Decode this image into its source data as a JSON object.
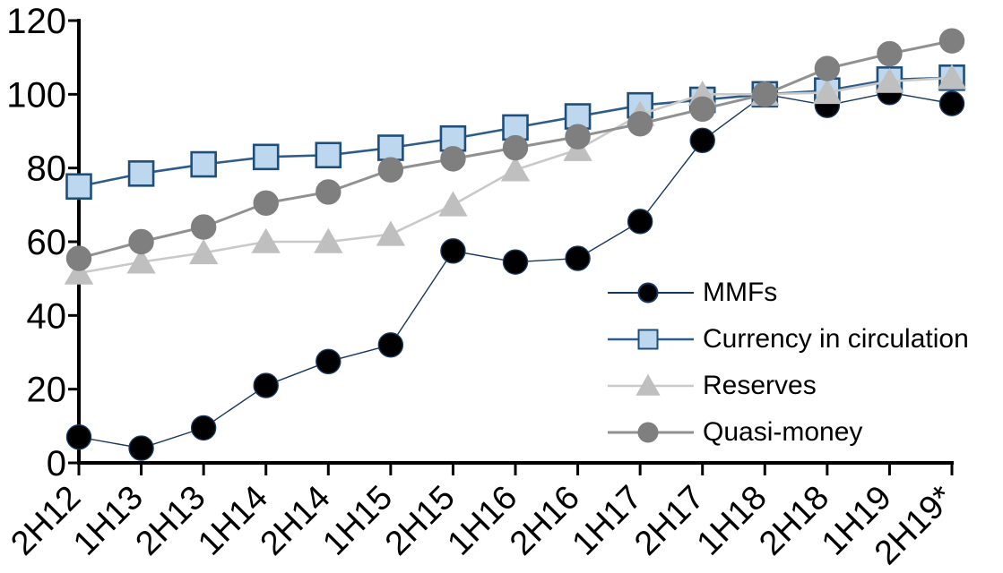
{
  "chart_data": {
    "type": "line",
    "title": "",
    "xlabel": "",
    "ylabel": "",
    "categories": [
      "2H12",
      "1H13",
      "2H13",
      "1H14",
      "2H14",
      "1H15",
      "2H15",
      "1H16",
      "2H16",
      "1H17",
      "2H17",
      "1H18",
      "2H18",
      "1H19",
      "2H19*"
    ],
    "series": [
      {
        "name": "MMFs",
        "marker": "circle",
        "marker_color": "#000000",
        "marker_edge": "#17375e",
        "line_color": "#17375e",
        "line_width": 1.4,
        "values": [
          7,
          4,
          9.5,
          21,
          27.5,
          32,
          57.5,
          54.5,
          55.5,
          65.5,
          87.5,
          100,
          97,
          100.5,
          97.5
        ]
      },
      {
        "name": "Currency in circulation",
        "marker": "square",
        "marker_color": "#bdd7ee",
        "marker_edge": "#1f4e79",
        "line_color": "#2e5c8a",
        "line_width": 2.6,
        "values": [
          75,
          78.5,
          81,
          83,
          83.5,
          85.5,
          88,
          91,
          94,
          97,
          98.5,
          100,
          101,
          104,
          104.5
        ]
      },
      {
        "name": "Reserves",
        "marker": "triangle",
        "marker_color": "#bfbfbf",
        "marker_edge": "#bfbfbf",
        "line_color": "#c9c9c9",
        "line_width": 2.6,
        "values": [
          51.5,
          54.5,
          57,
          60,
          60,
          62,
          70,
          79.5,
          85,
          94.5,
          100,
          100,
          100.5,
          103.5,
          104.5
        ]
      },
      {
        "name": "Quasi-money",
        "marker": "circle",
        "marker_color": "#7f7f7f",
        "marker_edge": "#7f7f7f",
        "line_color": "#919191",
        "line_width": 3,
        "values": [
          55.5,
          60,
          64,
          70.5,
          73.5,
          79.5,
          82.5,
          85.5,
          88.5,
          92,
          96,
          100,
          107,
          111,
          114.5
        ]
      }
    ],
    "ylim": [
      0,
      120
    ],
    "yticks": [
      0,
      20,
      40,
      60,
      80,
      100,
      120
    ],
    "grid": false,
    "legend_position": "inside-right",
    "axis_color": "#000000",
    "background": "#ffffff"
  }
}
